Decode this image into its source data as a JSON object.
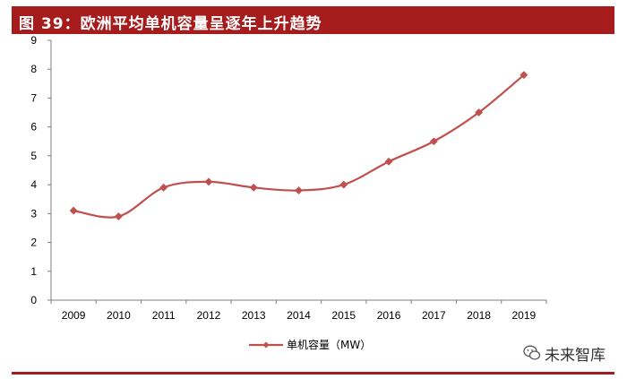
{
  "header": {
    "title": "图 39：欧洲平均单机容量呈逐年上升趋势",
    "accent_color": "#a61c1c"
  },
  "chart_data": {
    "type": "line",
    "title": "图 39：欧洲平均单机容量呈逐年上升趋势",
    "categories": [
      "2009",
      "2010",
      "2011",
      "2012",
      "2013",
      "2014",
      "2015",
      "2016",
      "2017",
      "2018",
      "2019"
    ],
    "series": [
      {
        "name": "单机容量（MW）",
        "values": [
          3.1,
          2.9,
          3.9,
          4.1,
          3.9,
          3.8,
          4.0,
          4.8,
          5.5,
          6.5,
          7.8
        ],
        "color": "#c0504d",
        "marker": "diamond"
      }
    ],
    "ylim": [
      0,
      9
    ],
    "yticks": [
      0,
      1,
      2,
      3,
      4,
      5,
      6,
      7,
      8,
      9
    ],
    "xlabel": "",
    "ylabel": "",
    "grid": false,
    "smooth": true,
    "legend_position": "bottom-center"
  },
  "watermark": {
    "text": "未来智库",
    "icon": "wechat-logo-icon"
  }
}
